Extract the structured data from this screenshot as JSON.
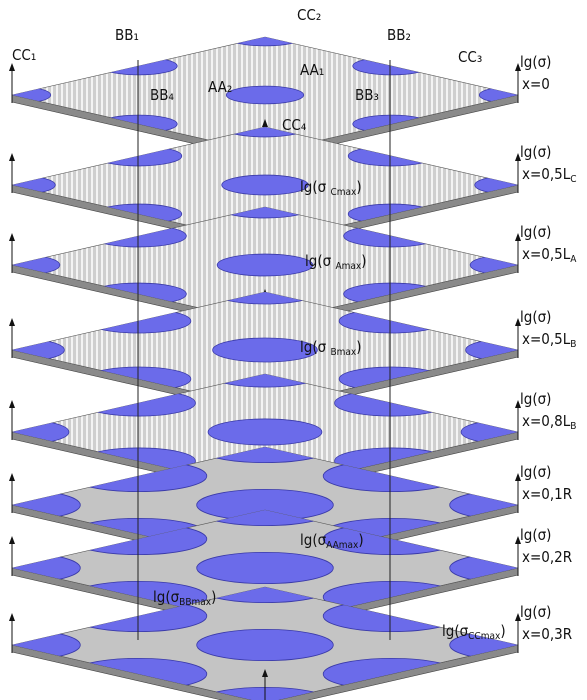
{
  "regions": [
    "CC₁",
    "BB₁",
    "CC₂",
    "BB₂",
    "CC₃",
    "AA₂",
    "AA₁",
    "BB₄",
    "BB₃",
    "CC₄"
  ],
  "layers": [
    {
      "axis": "lg(σ)",
      "x": "x=0"
    },
    {
      "axis": "lg(σ)",
      "x": "x=0,5L",
      "sub": "C"
    },
    {
      "axis": "lg(σ)",
      "x": "x=0,5L",
      "sub": "A"
    },
    {
      "axis": "lg(σ)",
      "x": "x=0,5L",
      "sub": "B"
    },
    {
      "axis": "lg(σ)",
      "x": "x=0,8L",
      "sub": "B"
    },
    {
      "axis": "lg(σ)",
      "x": "x=0,1R"
    },
    {
      "axis": "lg(σ)",
      "x": "x=0,2R"
    },
    {
      "axis": "lg(σ)",
      "x": "x=0,3R"
    }
  ],
  "peaks": [
    {
      "pre": "lg(σ ",
      "sub": "Cmax",
      "post": ")"
    },
    {
      "pre": "lg(σ ",
      "sub": "Amax",
      "post": ")"
    },
    {
      "pre": "lg(σ ",
      "sub": "Bmax",
      "post": ")"
    },
    {
      "pre": "lg(σ",
      "sub": "AAmax",
      "post": ")"
    },
    {
      "pre": "lg(σ",
      "sub": "BBmax",
      "post": ")"
    },
    {
      "pre": "lg(σ",
      "sub": "CCmax",
      "post": ")"
    }
  ]
}
